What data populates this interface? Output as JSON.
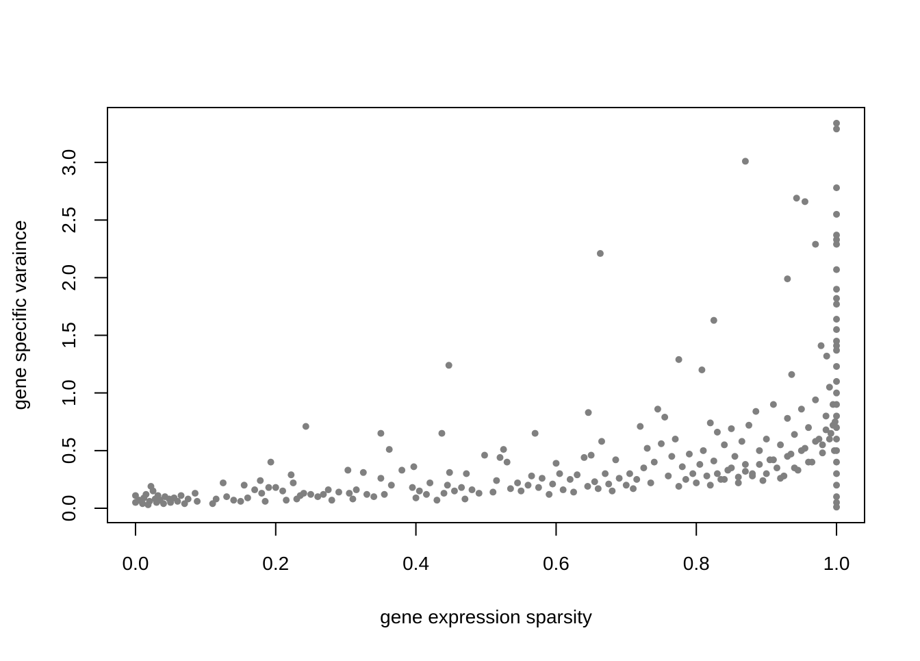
{
  "chart_data": {
    "type": "scatter",
    "x_label": "gene expression sparsity",
    "y_label": "gene specific varaince",
    "color": "#808080",
    "xlim": [
      -0.04,
      1.04
    ],
    "ylim": [
      -0.125,
      3.476
    ],
    "xticks": [
      {
        "value": 0,
        "label": "0.0"
      },
      0.2,
      0.4,
      0.6,
      0.8,
      {
        "value": 1,
        "label": "1.0"
      }
    ],
    "yticks": [
      {
        "value": 0,
        "label": "0.0"
      },
      0.5,
      {
        "value": 1,
        "label": "1.0"
      },
      1.5,
      {
        "value": 2,
        "label": "2.0"
      },
      2.5,
      {
        "value": 3,
        "label": "3.0"
      }
    ],
    "x": [
      0,
      0,
      0.005,
      0.01,
      0.012,
      0.015,
      0.018,
      0.02,
      0.022,
      0.025,
      0.028,
      0.03,
      0.032,
      0.035,
      0.04,
      0.042,
      0.048,
      0.05,
      0.055,
      0.06,
      0.065,
      0.07,
      0.075,
      0.085,
      0.088,
      0.11,
      0.115,
      0.125,
      0.13,
      0.14,
      0.15,
      0.155,
      0.16,
      0.17,
      0.178,
      0.18,
      0.185,
      0.19,
      0.193,
      0.2,
      0.21,
      0.215,
      0.222,
      0.225,
      0.23,
      0.235,
      0.24,
      0.25,
      0.26,
      0.268,
      0.275,
      0.28,
      0.29,
      0.303,
      0.305,
      0.31,
      0.315,
      0.325,
      0.33,
      0.34,
      0.35,
      0.355,
      0.362,
      0.365,
      0.38,
      0.395,
      0.397,
      0.4,
      0.405,
      0.415,
      0.42,
      0.43,
      0.44,
      0.445,
      0.448,
      0.455,
      0.465,
      0.47,
      0.472,
      0.48,
      0.49,
      0.498,
      0.51,
      0.515,
      0.52,
      0.525,
      0.53,
      0.535,
      0.545,
      0.55,
      0.56,
      0.565,
      0.575,
      0.58,
      0.59,
      0.595,
      0.6,
      0.605,
      0.61,
      0.62,
      0.625,
      0.63,
      0.64,
      0.645,
      0.65,
      0.655,
      0.66,
      0.665,
      0.67,
      0.675,
      0.68,
      0.685,
      0.69,
      0.7,
      0.705,
      0.71,
      0.715,
      0.72,
      0.725,
      0.73,
      0.735,
      0.74,
      0.75,
      0.755,
      0.76,
      0.765,
      0.77,
      0.775,
      0.78,
      0.785,
      0.79,
      0.795,
      0.8,
      0.805,
      0.81,
      0.815,
      0.82,
      0.825,
      0.83,
      0.835,
      0.84,
      0.845,
      0.85,
      0.855,
      0.86,
      0.865,
      0.87,
      0.875,
      0.88,
      0.885,
      0.89,
      0.895,
      0.9,
      0.905,
      0.91,
      0.915,
      0.92,
      0.925,
      0.93,
      0.935,
      0.94,
      0.945,
      0.95,
      0.955,
      0.96,
      0.965,
      0.97,
      0.975,
      0.98,
      0.985,
      0.99,
      0.992,
      0.995,
      0.997,
      0.998,
      0.82,
      0.84,
      0.86,
      0.88,
      0.9,
      0.92,
      0.94,
      0.96,
      0.98,
      0.99,
      0.83,
      0.85,
      0.87,
      0.89,
      0.91,
      0.93,
      0.95,
      0.97,
      0.985,
      0.995,
      0.87,
      0.943,
      0.955,
      0.97,
      0.93,
      0.663,
      0.825,
      0.775,
      0.808,
      0.936,
      0.447,
      0.646,
      0.745,
      0.243,
      0.35,
      0.437,
      0.57,
      0.978,
      0.986,
      1,
      1,
      1,
      1,
      1,
      1,
      1,
      1,
      1,
      1,
      1,
      1,
      1,
      1,
      1,
      1,
      1,
      1,
      1,
      1,
      1,
      1,
      1,
      1,
      1,
      1,
      1,
      1,
      1,
      1
    ],
    "values": [
      0.11,
      0.05,
      0.07,
      0.04,
      0.09,
      0.12,
      0.03,
      0.06,
      0.19,
      0.15,
      0.08,
      0.05,
      0.11,
      0.07,
      0.04,
      0.1,
      0.08,
      0.05,
      0.09,
      0.06,
      0.11,
      0.04,
      0.08,
      0.13,
      0.06,
      0.04,
      0.08,
      0.22,
      0.1,
      0.07,
      0.06,
      0.2,
      0.09,
      0.16,
      0.24,
      0.13,
      0.06,
      0.18,
      0.4,
      0.18,
      0.15,
      0.07,
      0.29,
      0.22,
      0.08,
      0.11,
      0.13,
      0.12,
      0.1,
      0.12,
      0.16,
      0.07,
      0.14,
      0.33,
      0.13,
      0.08,
      0.16,
      0.31,
      0.12,
      0.1,
      0.26,
      0.12,
      0.51,
      0.2,
      0.33,
      0.18,
      0.36,
      0.09,
      0.15,
      0.12,
      0.22,
      0.07,
      0.13,
      0.2,
      0.31,
      0.15,
      0.18,
      0.08,
      0.3,
      0.16,
      0.13,
      0.46,
      0.14,
      0.24,
      0.44,
      0.51,
      0.4,
      0.17,
      0.22,
      0.15,
      0.2,
      0.28,
      0.18,
      0.26,
      0.12,
      0.21,
      0.39,
      0.3,
      0.16,
      0.25,
      0.14,
      0.29,
      0.44,
      0.19,
      0.46,
      0.23,
      0.17,
      0.58,
      0.3,
      0.21,
      0.15,
      0.42,
      0.26,
      0.2,
      0.3,
      0.17,
      0.25,
      0.71,
      0.35,
      0.52,
      0.22,
      0.4,
      0.56,
      0.79,
      0.28,
      0.45,
      0.6,
      0.19,
      0.36,
      0.25,
      0.47,
      0.3,
      0.22,
      0.38,
      0.5,
      0.28,
      0.74,
      0.41,
      0.66,
      0.25,
      0.55,
      0.33,
      0.69,
      0.45,
      0.27,
      0.58,
      0.38,
      0.72,
      0.3,
      0.84,
      0.5,
      0.24,
      0.6,
      0.42,
      0.9,
      0.35,
      0.55,
      0.28,
      0.78,
      0.47,
      0.64,
      0.33,
      0.86,
      0.52,
      0.7,
      0.4,
      0.94,
      0.6,
      0.48,
      0.8,
      1.05,
      0.65,
      0.9,
      0.5,
      0.75,
      0.2,
      0.25,
      0.22,
      0.28,
      0.3,
      0.26,
      0.35,
      0.4,
      0.55,
      0.6,
      0.3,
      0.35,
      0.32,
      0.38,
      0.42,
      0.45,
      0.5,
      0.58,
      0.68,
      0.72,
      3.01,
      2.69,
      2.66,
      2.29,
      1.99,
      2.21,
      1.63,
      1.29,
      1.2,
      1.16,
      1.24,
      0.83,
      0.86,
      0.71,
      0.65,
      0.65,
      0.65,
      1.41,
      1.32,
      3.34,
      3.29,
      2.78,
      2.55,
      2.37,
      2.33,
      2.29,
      2.07,
      1.9,
      1.82,
      1.77,
      1.64,
      1.55,
      1.45,
      1.41,
      1.37,
      1.23,
      1.1,
      1.0,
      0.9,
      0.8,
      0.7,
      0.6,
      0.5,
      0.4,
      0.3,
      0.2,
      0.1,
      0.05,
      0.01
    ]
  }
}
